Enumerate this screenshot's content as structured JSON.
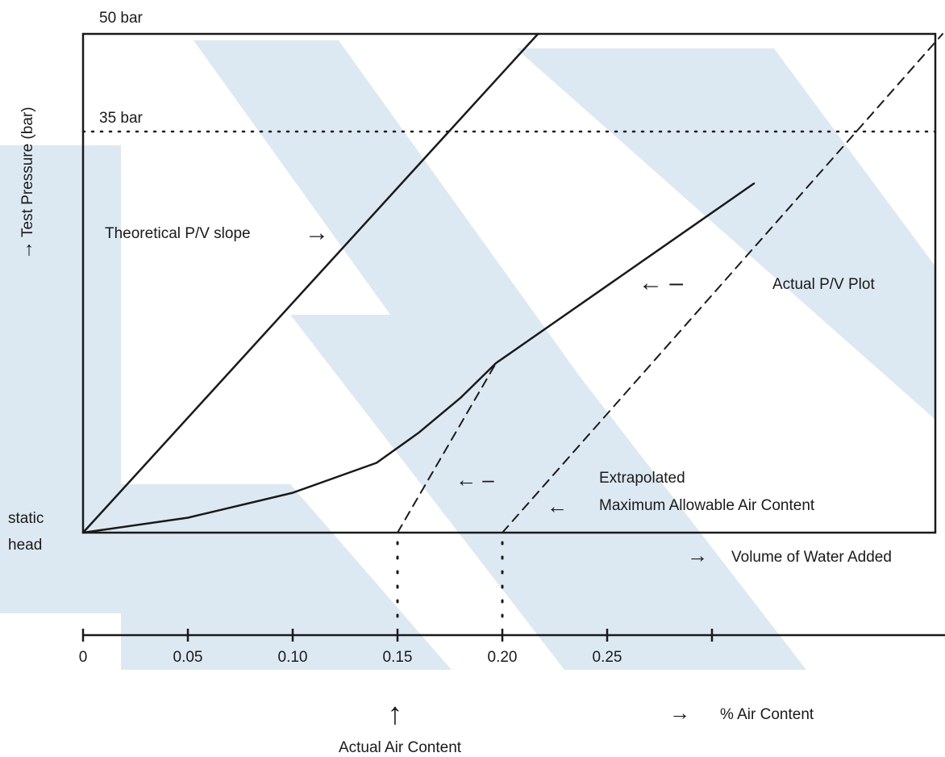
{
  "colors": {
    "ink": "#1a1a1a",
    "watermark": "#dde9f2"
  },
  "labels": {
    "top_pressure": "50 bar",
    "ref_pressure": "35 bar",
    "y_axis_arrow": "→",
    "y_axis": "Test Pressure (bar)",
    "theoretical": "Theoretical P/V slope",
    "theoretical_arrow": "→",
    "actual": "Actual P/V Plot",
    "actual_arrow": "← –",
    "extrapolated": "Extrapolated",
    "extrapolated_arrow": "← –",
    "max_air": "Maximum Allowable Air Content",
    "max_air_arrow": "←",
    "static": "static",
    "head": "head",
    "volume": "Volume of Water Added",
    "volume_arrow": "→",
    "air_content": "% Air Content",
    "air_content_arrow": "→",
    "actual_air": "Actual Air Content",
    "actual_air_arrow": "↑"
  },
  "chart_data": {
    "type": "line",
    "x_axis": {
      "label": "% Air Content",
      "ticks": [
        0,
        0.05,
        0.1,
        0.15,
        0.2,
        0.25
      ],
      "tick_labels": [
        "0",
        "0.05",
        "0.10",
        "0.15",
        "0.20",
        "0.25"
      ],
      "range": [
        0,
        0.4
      ]
    },
    "y_axis": {
      "label": "Test Pressure (bar)",
      "range": [
        0,
        50
      ],
      "reference_line": 35
    },
    "series": [
      {
        "name": "Theoretical P/V slope",
        "style": "solid",
        "points": [
          [
            0,
            0
          ],
          [
            0.217,
            50
          ]
        ]
      },
      {
        "name": "Actual P/V Plot",
        "style": "solid",
        "points": [
          [
            0,
            0
          ],
          [
            0.05,
            1.5
          ],
          [
            0.1,
            4
          ],
          [
            0.14,
            7
          ],
          [
            0.16,
            10
          ],
          [
            0.18,
            13.5
          ],
          [
            0.197,
            17
          ],
          [
            0.32,
            35
          ]
        ]
      },
      {
        "name": "Extrapolated",
        "style": "dashed",
        "points": [
          [
            0.15,
            0
          ],
          [
            0.197,
            17
          ]
        ]
      },
      {
        "name": "Maximum Allowable Air Content",
        "style": "dashed",
        "points": [
          [
            0.2,
            0
          ],
          [
            0.41,
            50
          ]
        ]
      }
    ],
    "markers": [
      {
        "name": "Actual Air Content",
        "x": 0.15
      },
      {
        "name": "Maximum Allowable Air Content",
        "x": 0.2
      }
    ]
  }
}
